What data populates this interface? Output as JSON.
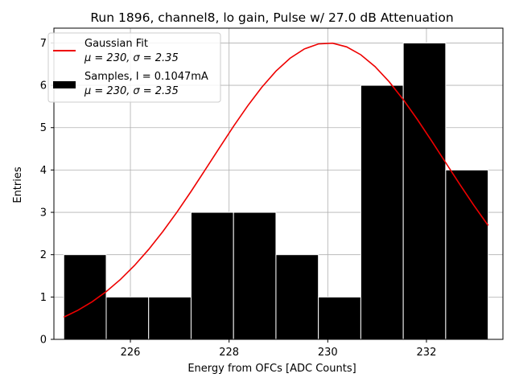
{
  "chart_data": {
    "type": "bar",
    "title": "Run 1896, channel8, lo gain, Pulse w/ 27.0 dB Attenuation",
    "xlabel": "Energy from OFCs [ADC Counts]",
    "ylabel": "Entries",
    "xlim": [
      224.45,
      233.55
    ],
    "ylim": [
      0,
      7.35
    ],
    "grid": true,
    "x_ticks": [
      226,
      228,
      230,
      232
    ],
    "y_ticks": [
      0,
      1,
      2,
      3,
      4,
      5,
      6,
      7
    ],
    "histogram": {
      "bin_edges": [
        224.65,
        225.51,
        226.37,
        227.23,
        228.09,
        228.95,
        229.81,
        230.67,
        231.53,
        232.39,
        233.25
      ],
      "counts": [
        2,
        1,
        1,
        3,
        3,
        2,
        1,
        6,
        7,
        4
      ],
      "color": "#000000",
      "edge_color": "#ffffff"
    },
    "fit": {
      "mu": 230.0,
      "sigma": 2.35,
      "amplitude": 7.0,
      "x_range": [
        224.65,
        233.25
      ],
      "color": "#ee0000"
    },
    "legend": {
      "placement": "top-left",
      "entries": [
        {
          "name": "Gaussian Fit",
          "line1": "Gaussian Fit",
          "mu_label": "μ = 230,",
          "sigma_label": "σ = 2.35"
        },
        {
          "name": "Samples",
          "line1": "Samples, I = 0.1047mA",
          "mu_label": "μ = 230,",
          "sigma_label": "σ = 2.35"
        }
      ]
    }
  }
}
